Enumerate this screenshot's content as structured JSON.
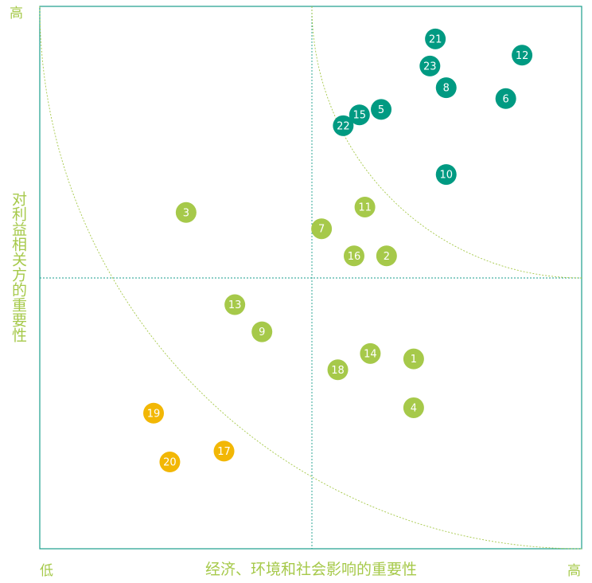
{
  "chart_data": {
    "type": "scatter",
    "title": "",
    "xlabel": "经济、环境和社会影响的重要性",
    "ylabel": "对利益相关方的重要性",
    "x_low_label": "低",
    "x_high_label": "高",
    "y_high_label": "高",
    "xlim": [
      0,
      10
    ],
    "ylim": [
      0,
      10
    ],
    "grid": false,
    "colors": {
      "frame": "#1a9e8c",
      "guide": "#1a9e8c",
      "curve": "#a6c94a",
      "high": "#009a82",
      "medium": "#a6c94a",
      "low": "#f2b705"
    },
    "points": [
      {
        "id": "1",
        "x": 6.9,
        "y": 3.5,
        "group": "medium"
      },
      {
        "id": "2",
        "x": 6.4,
        "y": 5.4,
        "group": "medium"
      },
      {
        "id": "3",
        "x": 2.7,
        "y": 6.2,
        "group": "medium"
      },
      {
        "id": "4",
        "x": 6.9,
        "y": 2.6,
        "group": "medium"
      },
      {
        "id": "5",
        "x": 6.3,
        "y": 8.1,
        "group": "high"
      },
      {
        "id": "6",
        "x": 8.6,
        "y": 8.3,
        "group": "high"
      },
      {
        "id": "7",
        "x": 5.2,
        "y": 5.9,
        "group": "medium"
      },
      {
        "id": "8",
        "x": 7.5,
        "y": 8.5,
        "group": "high"
      },
      {
        "id": "9",
        "x": 4.1,
        "y": 4.0,
        "group": "medium"
      },
      {
        "id": "10",
        "x": 7.5,
        "y": 6.9,
        "group": "high"
      },
      {
        "id": "11",
        "x": 6.0,
        "y": 6.3,
        "group": "medium"
      },
      {
        "id": "12",
        "x": 8.9,
        "y": 9.1,
        "group": "high"
      },
      {
        "id": "13",
        "x": 3.6,
        "y": 4.5,
        "group": "medium"
      },
      {
        "id": "14",
        "x": 6.1,
        "y": 3.6,
        "group": "medium"
      },
      {
        "id": "15",
        "x": 5.9,
        "y": 8.0,
        "group": "high"
      },
      {
        "id": "16",
        "x": 5.8,
        "y": 5.4,
        "group": "medium"
      },
      {
        "id": "17",
        "x": 3.4,
        "y": 1.8,
        "group": "low"
      },
      {
        "id": "18",
        "x": 5.5,
        "y": 3.3,
        "group": "medium"
      },
      {
        "id": "19",
        "x": 2.1,
        "y": 2.5,
        "group": "low"
      },
      {
        "id": "20",
        "x": 2.4,
        "y": 1.6,
        "group": "low"
      },
      {
        "id": "21",
        "x": 7.3,
        "y": 9.4,
        "group": "high"
      },
      {
        "id": "22",
        "x": 5.6,
        "y": 7.8,
        "group": "high"
      },
      {
        "id": "23",
        "x": 7.2,
        "y": 8.9,
        "group": "high"
      }
    ]
  }
}
